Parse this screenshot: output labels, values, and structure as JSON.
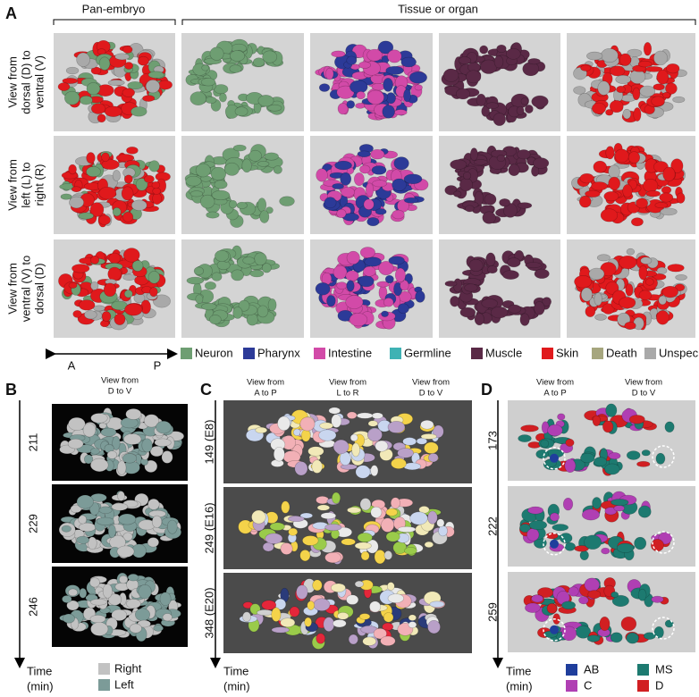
{
  "panel_a": {
    "label": "A",
    "group_headers": [
      "Pan-embryo",
      "Tissue or organ"
    ],
    "row_labels": [
      [
        "View from",
        "dorsal (D) to",
        "ventral (V)"
      ],
      [
        "View from",
        "left (L) to",
        "right (R)"
      ],
      [
        "View from",
        "ventral (V) to",
        "dorsal (D)"
      ]
    ],
    "axis": {
      "start": "A",
      "end": "P"
    },
    "legend": [
      {
        "name": "Neuron",
        "color": "#6e9e72"
      },
      {
        "name": "Pharynx",
        "color": "#2c3a98"
      },
      {
        "name": "Intestine",
        "color": "#d24aa8"
      },
      {
        "name": "Germline",
        "color": "#3fb2b4"
      },
      {
        "name": "Muscle",
        "color": "#5a2946"
      },
      {
        "name": "Skin",
        "color": "#e0191c"
      },
      {
        "name": "Death",
        "color": "#a6a67e"
      },
      {
        "name": "Unspecified",
        "color": "#a9a9a9"
      }
    ]
  },
  "panel_b": {
    "label": "B",
    "header": [
      "View from",
      "D to V"
    ],
    "rows": [
      "211",
      "229",
      "246"
    ],
    "time": [
      "Time",
      "(min)"
    ],
    "legend": [
      {
        "name": "Right",
        "color": "#c2c2c2"
      },
      {
        "name": "Left",
        "color": "#7c9b98"
      }
    ]
  },
  "panel_c": {
    "label": "C",
    "headers": [
      [
        "View from",
        "A to P"
      ],
      [
        "View from",
        "L to R"
      ],
      [
        "View from",
        "D to V"
      ]
    ],
    "rows": [
      "149 (E8)",
      "249 (E16)",
      "348 (E20)"
    ],
    "time": [
      "Time",
      "(min)"
    ]
  },
  "panel_d": {
    "label": "D",
    "headers": [
      [
        "View from",
        "A to P"
      ],
      [
        "View from",
        "D to V"
      ]
    ],
    "rows": [
      "173",
      "222",
      "259"
    ],
    "time": [
      "Time",
      "(min)"
    ],
    "legend": [
      {
        "name": "AB",
        "color": "#1f3e9c"
      },
      {
        "name": "MS",
        "color": "#1d7a70"
      },
      {
        "name": "C",
        "color": "#b03fb3"
      },
      {
        "name": "D",
        "color": "#d11f22"
      }
    ]
  }
}
